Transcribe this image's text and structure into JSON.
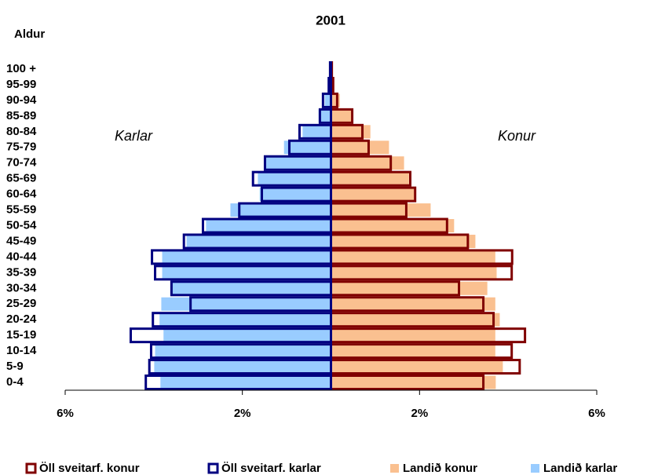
{
  "chart_data": {
    "type": "pyramid",
    "title": "2001",
    "y_label": "Aldur",
    "annotations": [
      "Karlar",
      "Konur"
    ],
    "categories": [
      "0-4",
      "5-9",
      "10-14",
      "15-19",
      "20-24",
      "25-29",
      "30-34",
      "35-39",
      "40-44",
      "45-49",
      "50-54",
      "55-59",
      "60-64",
      "65-69",
      "70-74",
      "75-79",
      "80-84",
      "85-89",
      "90-94",
      "95-99",
      "100 +"
    ],
    "series": [
      {
        "name": "Öll sveitarf. konur",
        "color": "#800000",
        "outline": true,
        "values": [
          3.44,
          4.26,
          4.08,
          4.38,
          3.67,
          3.44,
          2.89,
          4.08,
          4.09,
          3.09,
          2.62,
          1.7,
          1.9,
          1.79,
          1.35,
          0.85,
          0.71,
          0.48,
          0.14,
          0.05,
          0.02
        ]
      },
      {
        "name": "Öll sveitarf. karlar",
        "color": "#000080",
        "outline": true,
        "values": [
          -4.18,
          -4.1,
          -4.06,
          -4.52,
          -4.02,
          -3.17,
          -3.6,
          -3.97,
          -4.04,
          -3.32,
          -2.89,
          -2.07,
          -1.56,
          -1.76,
          -1.49,
          -0.94,
          -0.71,
          -0.25,
          -0.18,
          -0.05,
          -0.02
        ]
      },
      {
        "name": "Landið konur",
        "color": "#fac090",
        "outline": false,
        "values": [
          3.72,
          3.88,
          3.71,
          3.71,
          3.81,
          3.71,
          3.53,
          3.74,
          3.71,
          3.26,
          2.78,
          2.25,
          1.9,
          1.76,
          1.65,
          1.31,
          0.89,
          0.46,
          0.2,
          0.07,
          0.02
        ]
      },
      {
        "name": "Landið karlar",
        "color": "#99ccff",
        "outline": false,
        "values": [
          -3.85,
          -3.99,
          -3.97,
          -3.78,
          -3.87,
          -3.83,
          -3.6,
          -3.81,
          -3.81,
          -3.26,
          -2.82,
          -2.27,
          -1.61,
          -1.65,
          -1.51,
          -1.06,
          -0.64,
          -0.28,
          -0.14,
          -0.05,
          -0.01
        ]
      }
    ],
    "xlim": [
      -6,
      6
    ],
    "xticks": [
      {
        "value": -6,
        "label": "6%"
      },
      {
        "value": -2,
        "label": "2%"
      },
      {
        "value": 2,
        "label": "2%"
      },
      {
        "value": 6,
        "label": "6%"
      }
    ]
  }
}
